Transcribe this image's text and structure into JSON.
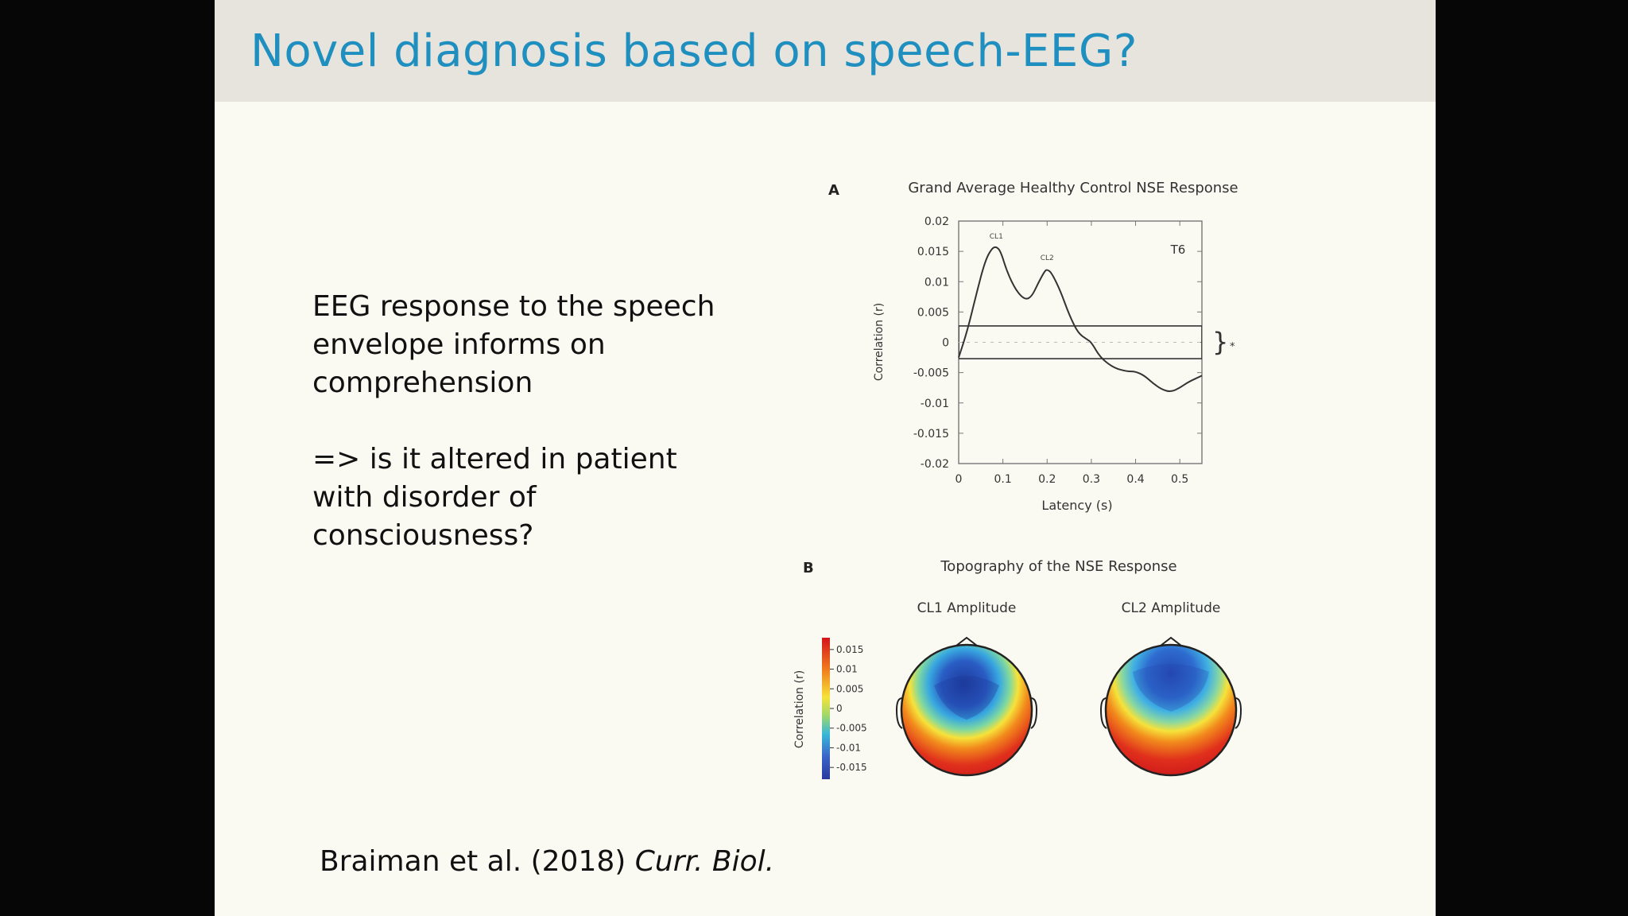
{
  "slide": {
    "title": "Novel diagnosis based on speech-EEG?",
    "paragraph_1": "EEG response to the speech envelope informs on comprehension",
    "paragraph_2": "=> is it altered in patient with disorder of consciousness?",
    "citation_authors": "Braiman et al. (2018)",
    "citation_journal": "Curr. Biol."
  },
  "chart_data": [
    {
      "panel": "A",
      "type": "line",
      "title": "Grand Average Healthy Control NSE Response",
      "xlabel": "Latency (s)",
      "ylabel": "Correlation (r)",
      "xlim": [
        0,
        0.55
      ],
      "ylim": [
        -0.02,
        0.02
      ],
      "x_ticks": [
        "0",
        "0.1",
        "0.2",
        "0.3",
        "0.4",
        "0.5"
      ],
      "y_ticks": [
        "0.02",
        "0.015",
        "0.01",
        "0.005",
        "0",
        "-0.005",
        "-0.01",
        "-0.015",
        "-0.02"
      ],
      "grid": false,
      "channel_label": "T6",
      "significance_band": [
        -0.0027,
        0.0027
      ],
      "significance_marker": "*",
      "annotations": [
        {
          "label": "CL1",
          "x": 0.085,
          "y": 0.0163
        },
        {
          "label": "CL2",
          "x": 0.2,
          "y": 0.0128
        }
      ],
      "series": [
        {
          "x": [
            0,
            0.02,
            0.04,
            0.06,
            0.075,
            0.085,
            0.095,
            0.11,
            0.13,
            0.15,
            0.165,
            0.18,
            0.195,
            0.2,
            0.21,
            0.23,
            0.25,
            0.27,
            0.29,
            0.3,
            0.32,
            0.35,
            0.38,
            0.4,
            0.42,
            0.44,
            0.46,
            0.48,
            0.5,
            0.52,
            0.55
          ],
          "y": [
            -0.0025,
            0.002,
            0.008,
            0.0135,
            0.0155,
            0.0158,
            0.015,
            0.0115,
            0.0085,
            0.007,
            0.0075,
            0.0098,
            0.0118,
            0.012,
            0.0115,
            0.0085,
            0.0045,
            0.0015,
            0.0005,
            0.0,
            -0.0025,
            -0.0042,
            -0.0048,
            -0.0048,
            -0.0055,
            -0.0068,
            -0.0078,
            -0.0082,
            -0.0075,
            -0.0065,
            -0.0055
          ]
        }
      ]
    },
    {
      "panel": "B",
      "type": "heatmap",
      "title": "Topography of the NSE Response",
      "colorbar_label": "Correlation (r)",
      "colorbar_ticks": [
        "0.015",
        "0.01",
        "0.005",
        "0",
        "-0.005",
        "-0.01",
        "-0.015"
      ],
      "colorbar_range": [
        -0.018,
        0.018
      ],
      "maps": [
        {
          "label": "CL1 Amplitude",
          "frontal_value": -0.015,
          "occipital_value": 0.015
        },
        {
          "label": "CL2 Amplitude",
          "frontal_value": -0.013,
          "occipital_value": 0.015
        }
      ],
      "colors": {
        "low": "#2a3a9e",
        "mid": "#f6e23a",
        "high": "#d4141c"
      }
    }
  ]
}
